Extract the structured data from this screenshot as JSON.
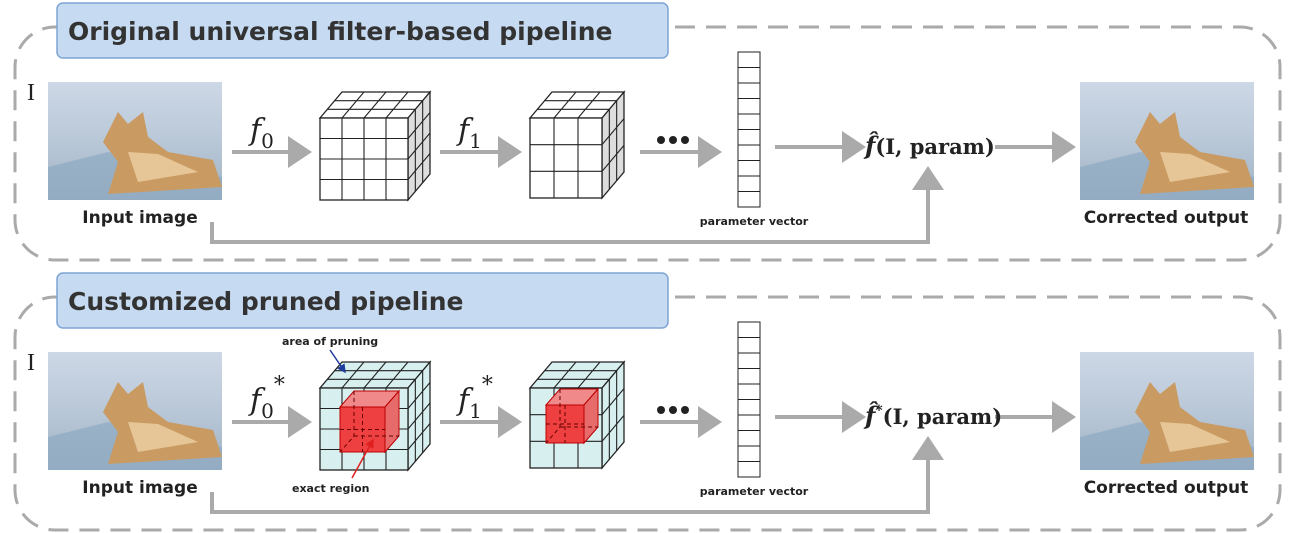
{
  "panels": [
    {
      "title": "Original universal filter-based pipeline",
      "input_symbol": "I",
      "input_label": "Input image",
      "filters": [
        {
          "base": "f",
          "sub": "0"
        },
        {
          "base": "f",
          "sub": "1"
        }
      ],
      "vector_label": "parameter vector",
      "function": {
        "name": "f̂",
        "args": "(I, param)"
      },
      "output_label": "Corrected output"
    },
    {
      "title": "Customized pruned pipeline",
      "input_symbol": "I",
      "input_label": "Input image",
      "filters": [
        {
          "base": "f",
          "sub": "0",
          "sup": "*"
        },
        {
          "base": "f",
          "sub": "1",
          "sup": "*"
        }
      ],
      "vector_label": "parameter vector",
      "function": {
        "name": "f̂",
        "sup": "*",
        "args": "(I, param)"
      },
      "output_label": "Corrected output",
      "annotations": {
        "pruning": "area of pruning",
        "exact": "exact region"
      }
    }
  ]
}
